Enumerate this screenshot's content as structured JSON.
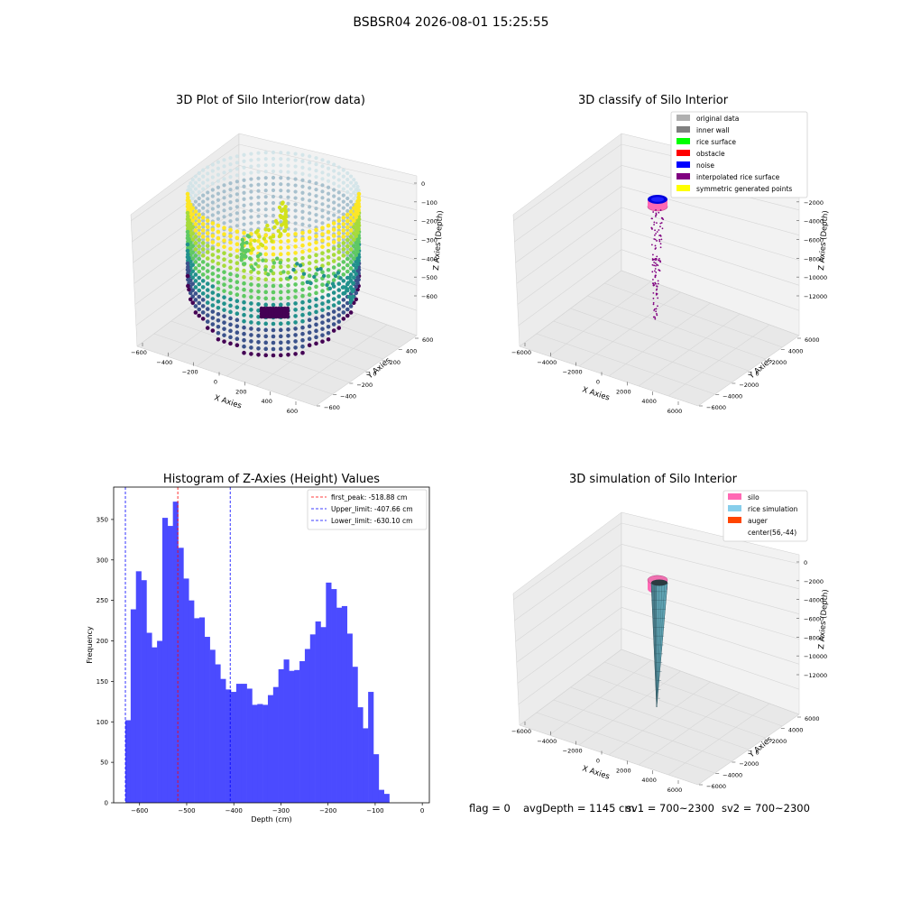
{
  "figure": {
    "suptitle": "BSBSR04 2026-08-01 15:25:55",
    "footer": {
      "flag": "flag = 0",
      "avg_depth": "avgDepth = 1145 cm",
      "sv1": "sv1 = 700~2300",
      "sv2": "sv2 = 700~2300"
    }
  },
  "chart_data": [
    {
      "type": "scatter",
      "title": "3D Plot of Silo Interior(row data)",
      "xlabel": "X Axies",
      "ylabel": "Y Axies",
      "zlabel": "Z Axies (Depth)",
      "x_ticks": [
        "−600",
        "−400",
        "−200",
        "0",
        "200",
        "400",
        "600"
      ],
      "y_ticks": [
        "−600",
        "−400",
        "−200",
        "0",
        "200",
        "400",
        "600"
      ],
      "z_ticks": [
        "0",
        "−100",
        "−200",
        "−300",
        "−400",
        "−500",
        "−600"
      ],
      "colormap": "viridis",
      "description_points": "cylindrical shell of points, radius ~550, depth 0 to -650"
    },
    {
      "type": "scatter",
      "title": "3D classify of Silo Interior",
      "xlabel": "X Axies",
      "ylabel": "Y Axies",
      "zlabel": "Z Axies (Depth)",
      "x_ticks": [
        "−6000",
        "−4000",
        "−2000",
        "0",
        "2000",
        "4000",
        "6000"
      ],
      "y_ticks": [
        "−6000",
        "−4000",
        "−2000",
        "0",
        "2000",
        "4000",
        "6000"
      ],
      "z_ticks": [
        "0",
        "−2000",
        "−4000",
        "−6000",
        "−8000",
        "−10000",
        "−12000"
      ],
      "legend": [
        {
          "label": "original data",
          "color": "#b0b0b0"
        },
        {
          "label": "inner wall",
          "color": "#808080"
        },
        {
          "label": "rice surface",
          "color": "#00ff00"
        },
        {
          "label": "obstacle",
          "color": "#ff0000"
        },
        {
          "label": "noise",
          "color": "#0000ff"
        },
        {
          "label": "interpolated rice surface",
          "color": "#800080"
        },
        {
          "label": "symmetric generated points",
          "color": "#ffff00"
        }
      ]
    },
    {
      "type": "bar",
      "title": "Histogram of Z-Axies (Height) Values",
      "xlabel": "Depth (cm)",
      "ylabel": "Frequency",
      "xlim": [
        -655,
        15
      ],
      "ylim": [
        0,
        390
      ],
      "bin_width": 11.2,
      "bins_start": -630.1,
      "bar_color": "#4b4bff",
      "x_ticks": [
        -600,
        -500,
        -400,
        -300,
        -200,
        -100,
        0
      ],
      "x_tick_labels": [
        "−600",
        "−500",
        "−400",
        "−300",
        "−200",
        "−100",
        "0"
      ],
      "y_ticks": [
        0,
        50,
        100,
        150,
        200,
        250,
        300,
        350
      ],
      "values": [
        102,
        239,
        286,
        275,
        210,
        192,
        200,
        352,
        342,
        372,
        315,
        277,
        250,
        228,
        229,
        205,
        189,
        171,
        153,
        140,
        137,
        147,
        147,
        141,
        121,
        122,
        121,
        133,
        143,
        165,
        177,
        163,
        164,
        175,
        190,
        208,
        224,
        217,
        272,
        264,
        241,
        243,
        209,
        168,
        118,
        92,
        137,
        60,
        16,
        11
      ],
      "lines": [
        {
          "label": "first_peak: -518.88 cm",
          "x": -518.88,
          "color": "#ff0000"
        },
        {
          "label": "Upper_limit: -407.66 cm",
          "x": -407.66,
          "color": "#0000ff"
        },
        {
          "label": "Lower_limit: -630.10 cm",
          "x": -630.1,
          "color": "#0000ff"
        }
      ]
    },
    {
      "type": "area",
      "title": "3D simulation of Silo Interior",
      "xlabel": "X Axies",
      "ylabel": "Y Axies",
      "zlabel": "Z Axies (Depth)",
      "x_ticks": [
        "−6000",
        "−4000",
        "−2000",
        "0",
        "2000",
        "4000",
        "6000"
      ],
      "y_ticks": [
        "−6000",
        "−4000",
        "−2000",
        "0",
        "2000",
        "4000",
        "6000"
      ],
      "z_ticks": [
        "0",
        "−2000",
        "−4000",
        "−6000",
        "−8000",
        "−10000",
        "−12000"
      ],
      "legend": [
        {
          "label": "silo",
          "color": "#ff69b4"
        },
        {
          "label": "rice simulation",
          "color": "#87ceeb"
        },
        {
          "label": "auger",
          "color": "#ff4500"
        },
        {
          "label": "center(56,-44)",
          "color": "#ffffff"
        }
      ]
    }
  ]
}
